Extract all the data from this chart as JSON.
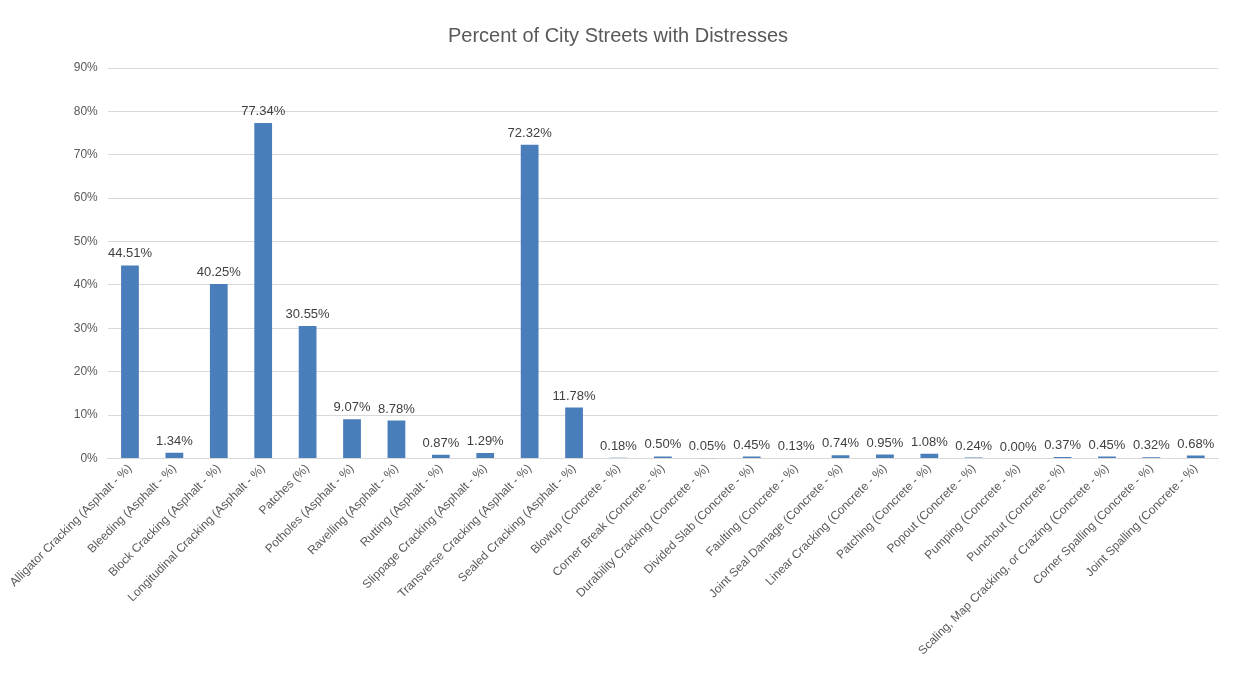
{
  "chart_data": {
    "type": "bar",
    "title": "Percent of City Streets with Distresses",
    "categories": [
      "Alligator Cracking (Asphalt - %)",
      "Bleeding (Asphalt - %)",
      "Block Cracking (Asphalt - %)",
      "Longitudinal Cracking (Asphalt - %)",
      "Patches (%)",
      "Potholes (Asphalt - %)",
      "Ravelling (Asphalt - %)",
      "Rutting (Asphalt - %)",
      "Slippage Cracking (Asphalt - %)",
      "Transverse Cracking (Asphalt - %)",
      "Sealed Cracking (Asphalt - %)",
      "Blowup (Concrete - %)",
      "Corner Break (Concrete - %)",
      "Durability Cracking (Concrete - %)",
      "Divided Slab (Concrete - %)",
      "Faulting (Concrete - %)",
      "Joint Seal Damage (Concrete - %)",
      "Linear Cracking (Concrete - %)",
      "Patching (Concrete - %)",
      "Popout (Concrete - %)",
      "Pumping (Concrete - %)",
      "Punchout (Concrete - %)",
      "Scaling, Map Cracking, or Crazing (Concrete - %)",
      "Corner Spalling (Concrete - %)",
      "Joint Spalling (Concrete - %)"
    ],
    "values": [
      44.51,
      1.34,
      40.25,
      77.34,
      30.55,
      9.07,
      8.78,
      0.87,
      1.29,
      72.32,
      11.78,
      0.18,
      0.5,
      0.05,
      0.45,
      0.13,
      0.74,
      0.95,
      1.08,
      0.24,
      0.0,
      0.37,
      0.45,
      0.32,
      0.68
    ],
    "value_labels": [
      "44.51%",
      "1.34%",
      "40.25%",
      "77.34%",
      "30.55%",
      "9.07%",
      "8.78%",
      "0.87%",
      "1.29%",
      "72.32%",
      "11.78%",
      "0.18%",
      "0.50%",
      "0.05%",
      "0.45%",
      "0.13%",
      "0.74%",
      "0.95%",
      "1.08%",
      "0.24%",
      "0.00%",
      "0.37%",
      "0.45%",
      "0.32%",
      "0.68%"
    ],
    "color": "#4a7ebb",
    "ylim": [
      0,
      90
    ],
    "yticks": [
      {
        "value": 0,
        "label": "0%"
      },
      {
        "value": 10,
        "label": "10%"
      },
      {
        "value": 20,
        "label": "20%"
      },
      {
        "value": 30,
        "label": "30%"
      },
      {
        "value": 40,
        "label": "40%"
      },
      {
        "value": 50,
        "label": "50%"
      },
      {
        "value": 60,
        "label": "60%"
      },
      {
        "value": 70,
        "label": "70%"
      },
      {
        "value": 80,
        "label": "80%"
      },
      {
        "value": 90,
        "label": "90%"
      }
    ],
    "grid": "y",
    "legend": false
  }
}
